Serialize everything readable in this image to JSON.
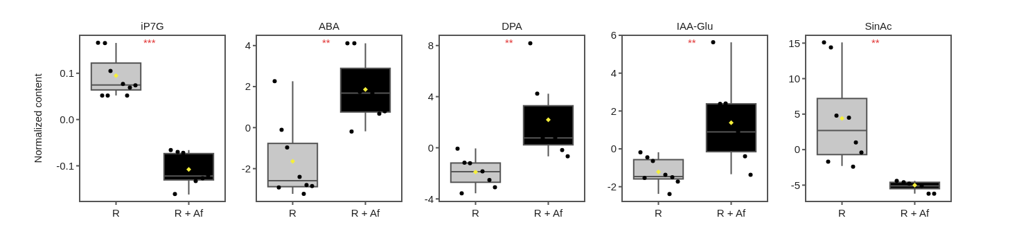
{
  "chart_data": [
    {
      "type": "box",
      "title": "iP7G",
      "ylabel": "Normalized content",
      "categories": [
        "R",
        "R + Af"
      ],
      "colors": [
        "#c8c8c8",
        "#000000"
      ],
      "ylim": [
        -0.177,
        0.182
      ],
      "yticks": [
        -0.1,
        {
          "value": 0,
          "label": "0.0"
        },
        0.1
      ],
      "annotations": [
        "***"
      ],
      "boxes": [
        {
          "low": 0.052,
          "q1": 0.064,
          "median": 0.0745,
          "q3": 0.122,
          "high": 0.1655,
          "mean": 0.095
        },
        {
          "low": -0.162,
          "q1": -0.1305,
          "median": -0.122,
          "q3": -0.0735,
          "high": -0.066,
          "mean": -0.108
        }
      ],
      "series": [
        {
          "type": "scatter",
          "color": "#000000",
          "x": [
            "R",
            "R",
            "R",
            "R",
            "R",
            "R",
            "R",
            "R",
            "R",
            "R + Af",
            "R + Af",
            "R + Af",
            "R + Af",
            "R + Af",
            "R + Af",
            "R + Af"
          ],
          "values": [
            0.166,
            0.165,
            0.105,
            0.077,
            0.069,
            0.074,
            0.052,
            0.052,
            0.052,
            -0.066,
            -0.07,
            -0.072,
            -0.133,
            -0.127,
            -0.121,
            -0.161
          ]
        }
      ]
    },
    {
      "type": "box",
      "title": "ABA",
      "categories": [
        "R",
        "R + Af"
      ],
      "colors": [
        "#c8c8c8",
        "#000000"
      ],
      "ylim": [
        -3.6,
        4.5
      ],
      "yticks": [
        -2,
        0,
        2,
        4
      ],
      "annotations": [
        "**"
      ],
      "boxes": [
        {
          "low": -3.23,
          "q1": -2.88,
          "median": -2.59,
          "q3": -0.77,
          "high": 2.26,
          "mean": -1.64
        },
        {
          "low": -0.18,
          "q1": 0.76,
          "median": 1.68,
          "q3": 2.89,
          "high": 4.11,
          "mean": 1.86
        }
      ],
      "series": [
        {
          "type": "scatter",
          "color": "#000000",
          "x": [
            "R",
            "R",
            "R",
            "R",
            "R",
            "R",
            "R",
            "R",
            "R + Af",
            "R + Af",
            "R + Af",
            "R + Af",
            "R + Af",
            "R + Af",
            "R + Af"
          ],
          "values": [
            2.26,
            -0.11,
            -0.97,
            -2.4,
            -2.8,
            -2.85,
            -2.92,
            -3.23,
            4.11,
            4.11,
            1.74,
            1.68,
            0.68,
            0.8,
            -0.19
          ]
        }
      ]
    },
    {
      "type": "box",
      "title": "DPA",
      "categories": [
        "R",
        "R + Af"
      ],
      "colors": [
        "#c8c8c8",
        "#000000"
      ],
      "ylim": [
        -4.2,
        8.8
      ],
      "yticks": [
        -4,
        0,
        4,
        8
      ],
      "annotations": [
        "**"
      ],
      "boxes": [
        {
          "low": -3.56,
          "q1": -2.7,
          "median": -1.87,
          "q3": -1.19,
          "high": -0.05,
          "mean": -1.9
        },
        {
          "low": -0.67,
          "q1": 0.23,
          "median": 0.77,
          "q3": 3.29,
          "high": 4.23,
          "mean": 2.19
        }
      ],
      "series": [
        {
          "type": "scatter",
          "color": "#000000",
          "x": [
            "R",
            "R",
            "R",
            "R",
            "R",
            "R",
            "R",
            "R + Af",
            "R + Af",
            "R + Af",
            "R + Af",
            "R + Af",
            "R + Af"
          ],
          "values": [
            -0.07,
            -1.16,
            -1.21,
            -1.85,
            -2.52,
            -3.09,
            -3.56,
            8.18,
            4.23,
            0.77,
            0.78,
            -0.18,
            -0.67
          ]
        }
      ]
    },
    {
      "type": "box",
      "title": "IAA-Glu",
      "categories": [
        "R",
        "R + Af"
      ],
      "colors": [
        "#c8c8c8",
        "#000000"
      ],
      "ylim": [
        -2.78,
        6
      ],
      "yticks": [
        -2,
        0,
        2,
        4,
        6
      ],
      "annotations": [
        "**"
      ],
      "boxes": [
        {
          "low": -2.38,
          "q1": -1.59,
          "median": -1.46,
          "q3": -0.57,
          "high": -0.18,
          "mean": -1.22
        },
        {
          "low": -1.34,
          "q1": -0.15,
          "median": 0.9,
          "q3": 2.38,
          "high": 5.63,
          "mean": 1.38
        }
      ],
      "series": [
        {
          "type": "scatter",
          "color": "#000000",
          "x": [
            "R",
            "R",
            "R",
            "R",
            "R",
            "R",
            "R",
            "R",
            "R + Af",
            "R + Af",
            "R + Af",
            "R + Af",
            "R + Af",
            "R + Af"
          ],
          "values": [
            -0.18,
            -0.45,
            -0.64,
            -1.37,
            -1.5,
            -1.73,
            -1.54,
            -2.39,
            5.63,
            2.38,
            2.4,
            0.9,
            -0.39,
            -1.37
          ]
        }
      ]
    },
    {
      "type": "box",
      "title": "SinAc",
      "categories": [
        "R",
        "R + Af"
      ],
      "colors": [
        "#c8c8c8",
        "#000000"
      ],
      "ylim": [
        -7.3,
        16.1
      ],
      "yticks": [
        -5,
        0,
        5,
        10,
        15
      ],
      "annotations": [
        "**"
      ],
      "boxes": [
        {
          "low": -2.3,
          "q1": -0.7,
          "median": 2.7,
          "q3": 7.2,
          "high": 15.1,
          "mean": 4.4
        },
        {
          "low": -6.2,
          "q1": -5.5,
          "median": -5.1,
          "q3": -4.6,
          "high": -4.4,
          "mean": -5.0
        }
      ],
      "series": [
        {
          "type": "scatter",
          "color": "#000000",
          "x": [
            "R",
            "R",
            "R",
            "R",
            "R",
            "R",
            "R",
            "R",
            "R + Af",
            "R + Af",
            "R + Af",
            "R + Af",
            "R + Af",
            "R + Af"
          ],
          "values": [
            15.1,
            14.4,
            4.8,
            4.5,
            1.0,
            -0.4,
            -1.7,
            -2.4,
            -4.4,
            -4.6,
            -4.8,
            -5.1,
            -6.2,
            -6.2
          ]
        }
      ]
    }
  ]
}
